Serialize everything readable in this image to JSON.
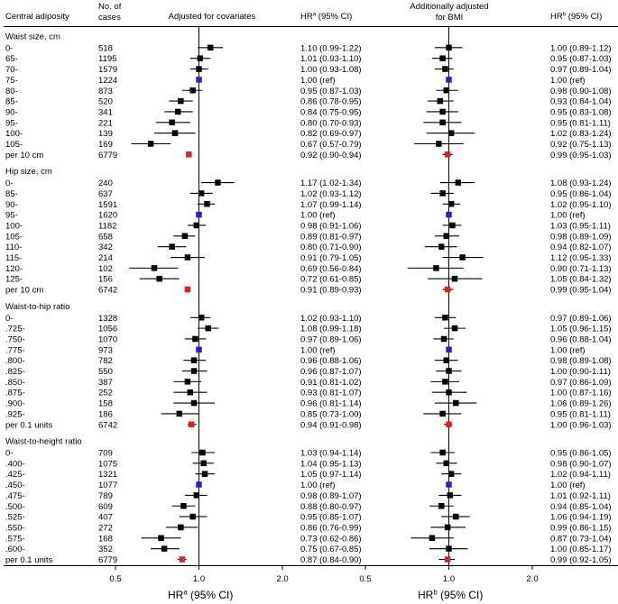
{
  "chart_data": {
    "type": "forest",
    "title": "",
    "header": {
      "col1": "Central adiposity",
      "col2": [
        "No. of",
        "cases"
      ],
      "panel1": "Adjusted for covariates",
      "hr1_main": "HR",
      "hr1_sup": "a",
      "hr1_rest": " (95% CI)",
      "panel2": [
        "Additionally adjusted",
        "for BMI"
      ],
      "hr2_main": "HR",
      "hr2_sup": "b",
      "hr2_rest": " (95% CI)"
    },
    "xaxis": {
      "scale": "log",
      "ticks": [
        0.5,
        1.0,
        2.0
      ],
      "tick_labels": [
        "0.5",
        "1.0",
        "2.0"
      ],
      "range": [
        0.5,
        2.0
      ],
      "label1_main": "HR",
      "label1_sup": "a",
      "label1_rest": " (95% CI)",
      "label2_main": "HR",
      "label2_sup": "b",
      "label2_rest": " (95% CI)"
    },
    "colors": {
      "ref": "#1f1fe0",
      "trend": "#e02020",
      "point": "#000000"
    },
    "groups": [
      {
        "title": "Waist size, cm",
        "rows": [
          {
            "label": "0-",
            "n": "518",
            "hr1": 1.1,
            "lo1": 0.99,
            "hi1": 1.22,
            "ci1": "1.10 (0.99-1.22)",
            "hr2": 1.0,
            "lo2": 0.89,
            "hi2": 1.12,
            "ci2": "1.00 (0.89-1.12)",
            "kind": "point"
          },
          {
            "label": "65-",
            "n": "1195",
            "hr1": 1.01,
            "lo1": 0.93,
            "hi1": 1.1,
            "ci1": "1.01 (0.93-1.10)",
            "hr2": 0.95,
            "lo2": 0.87,
            "hi2": 1.03,
            "ci2": "0.95 (0.87-1.03)",
            "kind": "point"
          },
          {
            "label": "70-",
            "n": "1579",
            "hr1": 1.0,
            "lo1": 0.93,
            "hi1": 1.08,
            "ci1": "1.00 (0.93-1.08)",
            "hr2": 0.97,
            "lo2": 0.89,
            "hi2": 1.04,
            "ci2": "0.97 (0.89-1.04)",
            "kind": "point"
          },
          {
            "label": "75-",
            "n": "1224",
            "hr1": 1.0,
            "lo1": 1.0,
            "hi1": 1.0,
            "ci1": "1.00 (ref)",
            "hr2": 1.0,
            "lo2": 1.0,
            "hi2": 1.0,
            "ci2": "1.00 (ref)",
            "kind": "ref"
          },
          {
            "label": "80-",
            "n": "873",
            "hr1": 0.95,
            "lo1": 0.87,
            "hi1": 1.03,
            "ci1": "0.95 (0.87-1.03)",
            "hr2": 0.98,
            "lo2": 0.9,
            "hi2": 1.08,
            "ci2": "0.98 (0.90-1.08)",
            "kind": "point"
          },
          {
            "label": "85-",
            "n": "520",
            "hr1": 0.86,
            "lo1": 0.78,
            "hi1": 0.95,
            "ci1": "0.86 (0.78-0.95)",
            "hr2": 0.93,
            "lo2": 0.84,
            "hi2": 1.04,
            "ci2": "0.93 (0.84-1.04)",
            "kind": "point"
          },
          {
            "label": "90-",
            "n": "341",
            "hr1": 0.84,
            "lo1": 0.75,
            "hi1": 0.95,
            "ci1": "0.84 (0.75-0.95)",
            "hr2": 0.95,
            "lo2": 0.83,
            "hi2": 1.08,
            "ci2": "0.95 (0.83-1.08)",
            "kind": "point"
          },
          {
            "label": "95-",
            "n": "221",
            "hr1": 0.8,
            "lo1": 0.7,
            "hi1": 0.93,
            "ci1": "0.80 (0.70-0.93)",
            "hr2": 0.95,
            "lo2": 0.81,
            "hi2": 1.11,
            "ci2": "0.95 (0.81-1.11)",
            "kind": "point"
          },
          {
            "label": "100-",
            "n": "139",
            "hr1": 0.82,
            "lo1": 0.69,
            "hi1": 0.97,
            "ci1": "0.82 (0.69-0.97)",
            "hr2": 1.02,
            "lo2": 0.83,
            "hi2": 1.24,
            "ci2": "1.02 (0.83-1.24)",
            "kind": "point"
          },
          {
            "label": "105-",
            "n": "169",
            "hr1": 0.67,
            "lo1": 0.57,
            "hi1": 0.79,
            "ci1": "0.67 (0.57-0.79)",
            "hr2": 0.92,
            "lo2": 0.75,
            "hi2": 1.13,
            "ci2": "0.92 (0.75-1.13)",
            "kind": "point"
          },
          {
            "label": "per 10 cm",
            "n": "6779",
            "hr1": 0.92,
            "lo1": 0.9,
            "hi1": 0.94,
            "ci1": "0.92 (0.90-0.94)",
            "hr2": 0.99,
            "lo2": 0.95,
            "hi2": 1.03,
            "ci2": "0.99 (0.95-1.03)",
            "kind": "trend"
          }
        ]
      },
      {
        "title": "Hip size, cm",
        "rows": [
          {
            "label": "0-",
            "n": "240",
            "hr1": 1.17,
            "lo1": 1.02,
            "hi1": 1.34,
            "ci1": "1.17 (1.02-1.34)",
            "hr2": 1.08,
            "lo2": 0.93,
            "hi2": 1.24,
            "ci2": "1.08 (0.93-1.24)",
            "kind": "point"
          },
          {
            "label": "85-",
            "n": "637",
            "hr1": 1.02,
            "lo1": 0.93,
            "hi1": 1.12,
            "ci1": "1.02 (0.93-1.12)",
            "hr2": 0.95,
            "lo2": 0.86,
            "hi2": 1.04,
            "ci2": "0.95 (0.86-1.04)",
            "kind": "point"
          },
          {
            "label": "90-",
            "n": "1591",
            "hr1": 1.07,
            "lo1": 0.99,
            "hi1": 1.14,
            "ci1": "1.07 (0.99-1.14)",
            "hr2": 1.02,
            "lo2": 0.95,
            "hi2": 1.1,
            "ci2": "1.02 (0.95-1.10)",
            "kind": "point"
          },
          {
            "label": "95-",
            "n": "1620",
            "hr1": 1.0,
            "lo1": 1.0,
            "hi1": 1.0,
            "ci1": "1.00 (ref)",
            "hr2": 1.0,
            "lo2": 1.0,
            "hi2": 1.0,
            "ci2": "1.00 (ref)",
            "kind": "ref"
          },
          {
            "label": "100-",
            "n": "1182",
            "hr1": 0.98,
            "lo1": 0.91,
            "hi1": 1.06,
            "ci1": "0.98 (0.91-1.06)",
            "hr2": 1.03,
            "lo2": 0.95,
            "hi2": 1.11,
            "ci2": "1.03 (0.95-1.11)",
            "kind": "point"
          },
          {
            "label": "105-",
            "n": "658",
            "hr1": 0.89,
            "lo1": 0.81,
            "hi1": 0.97,
            "ci1": "0.89 (0.81-0.97)",
            "hr2": 0.98,
            "lo2": 0.89,
            "hi2": 1.09,
            "ci2": "0.98 (0.89-1.09)",
            "kind": "point"
          },
          {
            "label": "110-",
            "n": "342",
            "hr1": 0.8,
            "lo1": 0.71,
            "hi1": 0.9,
            "ci1": "0.80 (0.71-0.90)",
            "hr2": 0.94,
            "lo2": 0.82,
            "hi2": 1.07,
            "ci2": "0.94 (0.82-1.07)",
            "kind": "point"
          },
          {
            "label": "115-",
            "n": "214",
            "hr1": 0.91,
            "lo1": 0.79,
            "hi1": 1.05,
            "ci1": "0.91 (0.79-1.05)",
            "hr2": 1.12,
            "lo2": 0.95,
            "hi2": 1.33,
            "ci2": "1.12 (0.95-1.33)",
            "kind": "point"
          },
          {
            "label": "120-",
            "n": "102",
            "hr1": 0.69,
            "lo1": 0.56,
            "hi1": 0.84,
            "ci1": "0.69 (0.56-0.84)",
            "hr2": 0.9,
            "lo2": 0.71,
            "hi2": 1.13,
            "ci2": "0.90 (0.71-1.13)",
            "kind": "point"
          },
          {
            "label": "125-",
            "n": "156",
            "hr1": 0.72,
            "lo1": 0.61,
            "hi1": 0.85,
            "ci1": "0.72 (0.61-0.85)",
            "hr2": 1.05,
            "lo2": 0.84,
            "hi2": 1.32,
            "ci2": "1.05 (0.84-1.32)",
            "kind": "point"
          },
          {
            "label": "per 10 cm",
            "n": "6742",
            "hr1": 0.91,
            "lo1": 0.89,
            "hi1": 0.93,
            "ci1": "0.91 (0.89-0.93)",
            "hr2": 0.99,
            "lo2": 0.95,
            "hi2": 1.04,
            "ci2": "0.99 (0.95-1.04)",
            "kind": "trend"
          }
        ]
      },
      {
        "title": "Waist-to-hip ratio",
        "rows": [
          {
            "label": "0-",
            "n": "1328",
            "hr1": 1.02,
            "lo1": 0.93,
            "hi1": 1.1,
            "ci1": "1.02 (0.93-1.10)",
            "hr2": 0.97,
            "lo2": 0.89,
            "hi2": 1.06,
            "ci2": "0.97 (0.89-1.06)",
            "kind": "point"
          },
          {
            "label": ".725-",
            "n": "1056",
            "hr1": 1.08,
            "lo1": 0.99,
            "hi1": 1.18,
            "ci1": "1.08 (0.99-1.18)",
            "hr2": 1.05,
            "lo2": 0.96,
            "hi2": 1.15,
            "ci2": "1.05 (0.96-1.15)",
            "kind": "point"
          },
          {
            "label": ".750-",
            "n": "1070",
            "hr1": 0.97,
            "lo1": 0.89,
            "hi1": 1.06,
            "ci1": "0.97 (0.89-1.06)",
            "hr2": 0.96,
            "lo2": 0.88,
            "hi2": 1.04,
            "ci2": "0.96 (0.88-1.04)",
            "kind": "point"
          },
          {
            "label": ".775-",
            "n": "973",
            "hr1": 1.0,
            "lo1": 1.0,
            "hi1": 1.0,
            "ci1": "1.00 (ref)",
            "hr2": 1.0,
            "lo2": 1.0,
            "hi2": 1.0,
            "ci2": "1.00 (ref)",
            "kind": "ref"
          },
          {
            "label": ".800-",
            "n": "782",
            "hr1": 0.96,
            "lo1": 0.88,
            "hi1": 1.06,
            "ci1": "0.96 (0.88-1.06)",
            "hr2": 0.98,
            "lo2": 0.89,
            "hi2": 1.08,
            "ci2": "0.98 (0.89-1.08)",
            "kind": "point"
          },
          {
            "label": ".825-",
            "n": "550",
            "hr1": 0.96,
            "lo1": 0.87,
            "hi1": 1.07,
            "ci1": "0.96 (0.87-1.07)",
            "hr2": 1.0,
            "lo2": 0.9,
            "hi2": 1.11,
            "ci2": "1.00 (0.90-1.11)",
            "kind": "point"
          },
          {
            "label": ".850-",
            "n": "387",
            "hr1": 0.91,
            "lo1": 0.81,
            "hi1": 1.02,
            "ci1": "0.91 (0.81-1.02)",
            "hr2": 0.97,
            "lo2": 0.86,
            "hi2": 1.09,
            "ci2": "0.97 (0.86-1.09)",
            "kind": "point"
          },
          {
            "label": ".875-",
            "n": "252",
            "hr1": 0.93,
            "lo1": 0.81,
            "hi1": 1.07,
            "ci1": "0.93 (0.81-1.07)",
            "hr2": 1.0,
            "lo2": 0.87,
            "hi2": 1.16,
            "ci2": "1.00 (0.87-1.16)",
            "kind": "point"
          },
          {
            "label": ".900-",
            "n": "158",
            "hr1": 0.96,
            "lo1": 0.81,
            "hi1": 1.14,
            "ci1": "0.96 (0.81-1.14)",
            "hr2": 1.06,
            "lo2": 0.89,
            "hi2": 1.26,
            "ci2": "1.06 (0.89-1.26)",
            "kind": "point"
          },
          {
            "label": ".925-",
            "n": "186",
            "hr1": 0.85,
            "lo1": 0.73,
            "hi1": 1.0,
            "ci1": "0.85 (0.73-1.00)",
            "hr2": 0.95,
            "lo2": 0.81,
            "hi2": 1.11,
            "ci2": "0.95 (0.81-1.11)",
            "kind": "point"
          },
          {
            "label": "per 0.1 units",
            "n": "6742",
            "hr1": 0.94,
            "lo1": 0.91,
            "hi1": 0.98,
            "ci1": "0.94 (0.91-0.98)",
            "hr2": 1.0,
            "lo2": 0.96,
            "hi2": 1.03,
            "ci2": "1.00 (0.96-1.03)",
            "kind": "trend"
          }
        ]
      },
      {
        "title": "Waist-to-height ratio",
        "rows": [
          {
            "label": "0-",
            "n": "709",
            "hr1": 1.03,
            "lo1": 0.94,
            "hi1": 1.14,
            "ci1": "1.03 (0.94-1.14)",
            "hr2": 0.95,
            "lo2": 0.86,
            "hi2": 1.05,
            "ci2": "0.95 (0.86-1.05)",
            "kind": "point"
          },
          {
            "label": ".400-",
            "n": "1075",
            "hr1": 1.04,
            "lo1": 0.95,
            "hi1": 1.13,
            "ci1": "1.04 (0.95-1.13)",
            "hr2": 0.98,
            "lo2": 0.9,
            "hi2": 1.07,
            "ci2": "0.98 (0.90-1.07)",
            "kind": "point"
          },
          {
            "label": ".425-",
            "n": "1321",
            "hr1": 1.05,
            "lo1": 0.97,
            "hi1": 1.14,
            "ci1": "1.05 (0.97-1.14)",
            "hr2": 1.02,
            "lo2": 0.94,
            "hi2": 1.11,
            "ci2": "1.02 (0.94-1.11)",
            "kind": "point"
          },
          {
            "label": ".450-",
            "n": "1077",
            "hr1": 1.0,
            "lo1": 1.0,
            "hi1": 1.0,
            "ci1": "1.00 (ref)",
            "hr2": 1.0,
            "lo2": 1.0,
            "hi2": 1.0,
            "ci2": "1.00 (ref)",
            "kind": "ref"
          },
          {
            "label": ".475-",
            "n": "789",
            "hr1": 0.98,
            "lo1": 0.89,
            "hi1": 1.07,
            "ci1": "0.98 (0.89-1.07)",
            "hr2": 1.01,
            "lo2": 0.92,
            "hi2": 1.11,
            "ci2": "1.01 (0.92-1.11)",
            "kind": "point"
          },
          {
            "label": ".500-",
            "n": "609",
            "hr1": 0.88,
            "lo1": 0.8,
            "hi1": 0.97,
            "ci1": "0.88 (0.80-0.97)",
            "hr2": 0.94,
            "lo2": 0.85,
            "hi2": 1.04,
            "ci2": "0.94 (0.85-1.04)",
            "kind": "point"
          },
          {
            "label": ".525-",
            "n": "407",
            "hr1": 0.95,
            "lo1": 0.85,
            "hi1": 1.07,
            "ci1": "0.95 (0.85-1.07)",
            "hr2": 1.06,
            "lo2": 0.94,
            "hi2": 1.19,
            "ci2": "1.06 (0.94-1.19)",
            "kind": "point"
          },
          {
            "label": ".550-",
            "n": "272",
            "hr1": 0.86,
            "lo1": 0.76,
            "hi1": 0.99,
            "ci1": "0.86 (0.76-0.99)",
            "hr2": 0.99,
            "lo2": 0.86,
            "hi2": 1.15,
            "ci2": "0.99 (0.86-1.15)",
            "kind": "point"
          },
          {
            "label": ".575-",
            "n": "168",
            "hr1": 0.73,
            "lo1": 0.62,
            "hi1": 0.86,
            "ci1": "0.73 (0.62-0.86)",
            "hr2": 0.87,
            "lo2": 0.73,
            "hi2": 1.04,
            "ci2": "0.87 (0.73-1.04)",
            "kind": "point"
          },
          {
            "label": ".600-",
            "n": "352",
            "hr1": 0.75,
            "lo1": 0.67,
            "hi1": 0.85,
            "ci1": "0.75 (0.67-0.85)",
            "hr2": 1.0,
            "lo2": 0.85,
            "hi2": 1.17,
            "ci2": "1.00 (0.85-1.17)",
            "kind": "point"
          },
          {
            "label": "per 0.1 units",
            "n": "6779",
            "hr1": 0.87,
            "lo1": 0.84,
            "hi1": 0.9,
            "ci1": "0.87 (0.84-0.90)",
            "hr2": 0.99,
            "lo2": 0.92,
            "hi2": 1.05,
            "ci2": "0.99 (0.92-1.05)",
            "kind": "trend"
          }
        ]
      }
    ]
  }
}
